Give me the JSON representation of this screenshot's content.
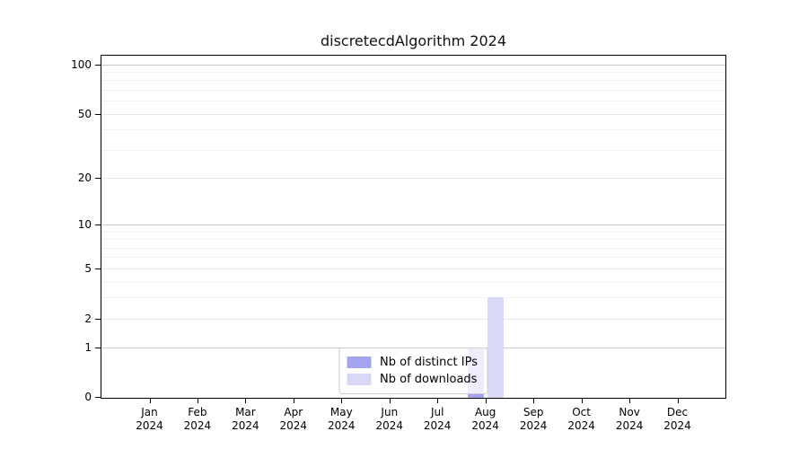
{
  "title": "discretecdAlgorithm 2024",
  "chart_data": {
    "type": "bar",
    "title": "discretecdAlgorithm 2024",
    "categories": [
      "Jan",
      "Feb",
      "Mar",
      "Apr",
      "May",
      "Jun",
      "Jul",
      "Aug",
      "Sep",
      "Oct",
      "Nov",
      "Dec"
    ],
    "year_label": "2024",
    "series": [
      {
        "name": "Nb of distinct IPs",
        "color": "#a3a3ef",
        "values": [
          0,
          0,
          0,
          0,
          0,
          0,
          0,
          1,
          0,
          0,
          0,
          0
        ]
      },
      {
        "name": "Nb of downloads",
        "color": "#d9d9f6",
        "values": [
          0,
          0,
          0,
          0,
          0,
          0,
          0,
          3,
          0,
          0,
          0,
          0
        ]
      }
    ],
    "yscale": "log10(1+value)",
    "ylim": [
      0,
      112.8
    ],
    "y_ticks": [
      0,
      1,
      2,
      5,
      10,
      20,
      50,
      100
    ],
    "y_minor_gridlines": [
      3,
      4,
      6,
      7,
      8,
      9,
      30,
      40,
      60,
      70,
      80,
      90
    ],
    "grid": "horizontal",
    "legend_position": "lower center",
    "colors": {
      "decade_grid": "#c8c8c8",
      "major_grid": "#e9e9e9",
      "minor_grid": "#f1f1f1",
      "axis": "#000000",
      "text": "#000000",
      "background": "#ffffff"
    }
  }
}
